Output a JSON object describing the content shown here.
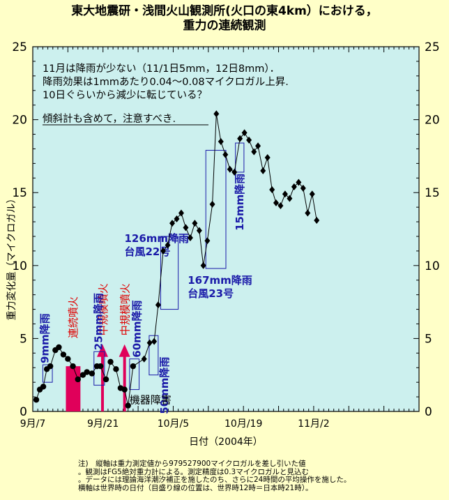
{
  "title_lines": [
    "東大地震研・浅間火山観測所(火口の東4km）における，",
    "重力の連続観測"
  ],
  "chart_data": {
    "type": "line",
    "xlabel": "日付（2004年）",
    "ylabel": "重力変化量（マイクロガル）",
    "x_ticks": [
      "9月/7",
      "9月/21",
      "10月/5",
      "10月/19",
      "11月/2"
    ],
    "y_ticks": [
      "0",
      "5",
      "10",
      "15",
      "20",
      "25"
    ],
    "y_ticks_right": [
      "0",
      "5",
      "10",
      "15",
      "20",
      "25"
    ],
    "ylim": [
      0,
      25
    ],
    "xlim_days": [
      0,
      77
    ],
    "series": [
      {
        "points": [
          [
            0.7,
            0.8
          ],
          [
            1.4,
            1.5
          ],
          [
            2.1,
            1.7
          ],
          [
            2.8,
            2.9
          ],
          [
            3.5,
            3.1
          ],
          [
            4.5,
            4.2
          ],
          [
            5.2,
            4.4
          ],
          [
            6.1,
            3.9
          ],
          [
            7.0,
            3.6
          ],
          [
            8.0,
            3.1
          ],
          [
            9.0,
            2.2
          ],
          [
            10.0,
            2.5
          ],
          [
            10.8,
            2.7
          ],
          [
            11.8,
            2.6
          ],
          [
            12.8,
            3.1
          ],
          [
            13.5,
            3.1
          ],
          [
            14.6,
            2.2
          ],
          [
            15.5,
            3.4
          ],
          [
            16.6,
            2.9
          ],
          [
            17.5,
            1.6
          ],
          [
            18.3,
            1.5
          ],
          [
            19.0,
            0.4
          ],
          [
            20.0,
            3.1
          ],
          [
            22.2,
            3.6
          ],
          [
            23.3,
            4.7
          ],
          [
            24.2,
            4.8
          ],
          [
            25.0,
            7.3
          ],
          [
            26.0,
            11.0
          ],
          [
            26.9,
            11.4
          ],
          [
            27.8,
            12.9
          ],
          [
            28.7,
            13.2
          ],
          [
            29.6,
            13.6
          ],
          [
            30.5,
            12.6
          ],
          [
            31.4,
            11.9
          ],
          [
            32.3,
            12.9
          ],
          [
            33.2,
            12.4
          ],
          [
            34.0,
            10.0
          ],
          [
            34.8,
            11.7
          ],
          [
            35.8,
            14.2
          ],
          [
            36.6,
            20.4
          ],
          [
            37.5,
            18.5
          ],
          [
            38.4,
            17.6
          ],
          [
            39.3,
            16.6
          ],
          [
            40.2,
            16.4
          ],
          [
            41.3,
            18.7
          ],
          [
            42.2,
            19.1
          ],
          [
            43.1,
            18.6
          ],
          [
            44.1,
            17.8
          ],
          [
            44.9,
            18.2
          ],
          [
            45.9,
            16.5
          ],
          [
            46.8,
            17.4
          ],
          [
            47.7,
            15.2
          ],
          [
            48.5,
            14.3
          ],
          [
            49.4,
            14.1
          ],
          [
            50.3,
            14.9
          ],
          [
            51.2,
            14.6
          ],
          [
            52.1,
            15.4
          ],
          [
            53.0,
            15.7
          ],
          [
            53.9,
            15.3
          ],
          [
            54.8,
            13.6
          ],
          [
            55.7,
            14.9
          ],
          [
            56.6,
            13.1
          ]
        ]
      }
    ],
    "rain_boxes": [
      {
        "x": [
          2.0,
          3.9
        ],
        "y": [
          2.0,
          3.2
        ],
        "label": "9mm降雨"
      },
      {
        "x": [
          12.2,
          14.3
        ],
        "y": [
          1.8,
          4.1
        ],
        "label": "25mm降雨"
      },
      {
        "x": [
          19.3,
          21.2
        ],
        "y": [
          1.5,
          3.6
        ],
        "label": "60mm降雨"
      },
      {
        "x": [
          23.2,
          25.0
        ],
        "y": [
          2.5,
          5.2
        ],
        "label": "50mm降雨"
      },
      {
        "x": [
          25.5,
          29.0
        ],
        "y": [
          7.0,
          12.0
        ],
        "label": "126mm降雨",
        "sublabel": "台風22号"
      },
      {
        "x": [
          34.5,
          38.5
        ],
        "y": [
          9.8,
          17.9
        ],
        "label": "167mm降雨",
        "sublabel": "台風23号"
      },
      {
        "x": [
          40.4,
          42.1
        ],
        "y": [
          16.4,
          18.4
        ],
        "label": "15mm降雨"
      }
    ],
    "eruptions": [
      {
        "type": "bar",
        "x": [
          6.6,
          9.5
        ],
        "height": 3.1,
        "label": "連続噴火"
      },
      {
        "type": "arrow",
        "x": 13.9,
        "height": 4.6,
        "label": "中規模噴火"
      },
      {
        "type": "arrow",
        "x": 18.3,
        "height": 4.6,
        "label": "中規模噴火"
      }
    ],
    "equipment_note": "機器障害",
    "annotation_lines": [
      "11月は降雨が少ない（11/1日5mm，12日8mm）．",
      "降雨効果は1mmあたり0.04〜0.08マイクロガル上昇.",
      "10日ぐらいから減少に転じている？"
    ],
    "annotation_warning": "傾斜計も含めて，注意すべき.",
    "colors": {
      "plot_bg": "#ccf0ee",
      "page_bg": "#ffffc8",
      "line": "#000000",
      "rain": "#1a1aa8",
      "eruption": "#e0005a",
      "eruption_text": "#e00000"
    }
  },
  "notes": [
    "注)　縦軸は重力測定値から979527900マイクロガルを差し引いた値",
    "。観測はFG5絶対重力計による。測定精度は0.3マイクロガルと見込む",
    "。データには理論海洋潮汐補正を施したのち、さらに24時間の平均操作を施した。",
    "横軸は世界時の日付（目盛り線の位置は、世界時12時＝日本時21時）。"
  ]
}
